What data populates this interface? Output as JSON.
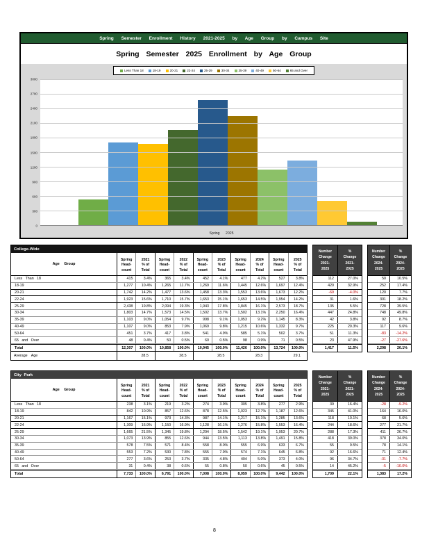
{
  "banner": {
    "title": "Spring Semester Enrollment History 2021-2025 by Age Group by Campus Site"
  },
  "chart": {
    "title": "Spring Semester 2025 Enrollment by Age Group",
    "x_axis_label": "Spring 2025"
  },
  "chart_data": {
    "type": "bar",
    "title": "Spring Semester 2025 Enrollment by Age Group",
    "categories": [
      "Less Than 18",
      "18-19",
      "20-21",
      "22-24",
      "25-29",
      "30-34",
      "35-39",
      "40-49",
      "50-64",
      "65 and Over"
    ],
    "values": [
      527,
      1697,
      1673,
      1954,
      2573,
      2250,
      1145,
      1332,
      502,
      71
    ],
    "colors": [
      "#70AD47",
      "#5B9BD5",
      "#FFC000",
      "#44682D",
      "#27598C",
      "#9C7500",
      "#8CC168",
      "#7CADDE",
      "#FFC933",
      "#538135"
    ],
    "xlabel": "Spring 2025",
    "ylabel": "",
    "ylim": [
      0,
      3000
    ],
    "ytick_step": 300,
    "grid": true,
    "legend_position": "top"
  },
  "table_headers": {
    "age_group": "Age Group",
    "count_lines": [
      "Spring",
      "Head-",
      "count"
    ],
    "pct_lines": [
      "% of",
      "Total"
    ],
    "years": [
      "2021",
      "2022",
      "2023",
      "2024",
      "2025"
    ]
  },
  "change_headers": {
    "a": {
      "col1": [
        "Number",
        "Change",
        "2021-",
        "2025"
      ],
      "col2": [
        "%",
        "Change",
        "2021-",
        "2025"
      ]
    },
    "b": {
      "col1": [
        "Number",
        "Change",
        "2024-",
        "2025"
      ],
      "col2": [
        "%",
        "Change",
        "2024-",
        "2025"
      ]
    }
  },
  "tables": [
    {
      "id": "college-wide",
      "title": "College-Wide",
      "title_bg": "#141414",
      "rows": [
        {
          "label": "Less Than 18",
          "cells": [
            "415",
            "3.4%",
            "365",
            "3.4%",
            "452",
            "4.1%",
            "477",
            "4.2%",
            "527",
            "3.8%"
          ]
        },
        {
          "label": "18-19",
          "cells": [
            "1,277",
            "10.4%",
            "1,265",
            "11.7%",
            "1,269",
            "11.6%",
            "1,445",
            "12.6%",
            "1,697",
            "12.4%"
          ]
        },
        {
          "label": "20-21",
          "cells": [
            "1,742",
            "14.2%",
            "1,477",
            "13.6%",
            "1,458",
            "13.3%",
            "1,553",
            "13.6%",
            "1,673",
            "12.2%"
          ]
        },
        {
          "label": "22-24",
          "cells": [
            "1,923",
            "15.6%",
            "1,710",
            "15.7%",
            "1,653",
            "15.1%",
            "1,653",
            "14.5%",
            "1,954",
            "14.2%"
          ]
        },
        {
          "label": "25-29",
          "cells": [
            "2,438",
            "19.8%",
            "2,094",
            "19.3%",
            "1,943",
            "17.8%",
            "1,845",
            "16.1%",
            "2,573",
            "18.7%"
          ]
        },
        {
          "label": "30-34",
          "cells": [
            "1,803",
            "14.7%",
            "1,573",
            "14.5%",
            "1,502",
            "13.7%",
            "1,502",
            "13.1%",
            "2,250",
            "16.4%"
          ]
        },
        {
          "label": "35-39",
          "cells": [
            "1,103",
            "9.0%",
            "1,054",
            "9.7%",
            "998",
            "9.1%",
            "1,053",
            "9.2%",
            "1,145",
            "8.3%"
          ]
        },
        {
          "label": "40-49",
          "cells": [
            "1,107",
            "9.0%",
            "853",
            "7.9%",
            "1,069",
            "9.8%",
            "1,215",
            "10.6%",
            "1,332",
            "9.7%"
          ]
        },
        {
          "label": "50-64",
          "cells": [
            "451",
            "3.7%",
            "417",
            "3.8%",
            "541",
            "4.9%",
            "585",
            "5.1%",
            "502",
            "3.7%"
          ]
        },
        {
          "label": "65 and Over",
          "cells": [
            "48",
            "0.4%",
            "50",
            "0.5%",
            "60",
            "0.5%",
            "98",
            "0.9%",
            "71",
            "0.5%"
          ]
        }
      ],
      "total_row": {
        "label": "Total",
        "cells": [
          "12,307",
          "100.0%",
          "10,858",
          "100.0%",
          "10,945",
          "100.0%",
          "11,426",
          "100.0%",
          "13,724",
          "100.0%"
        ]
      },
      "change_a": {
        "rows": [
          [
            "112",
            "27.0%"
          ],
          [
            "420",
            "32.9%"
          ],
          [
            "-69",
            "-4.0%"
          ],
          [
            "31",
            "1.6%"
          ],
          [
            "135",
            "5.5%"
          ],
          [
            "447",
            "24.8%"
          ],
          [
            "42",
            "3.8%"
          ],
          [
            "225",
            "20.3%"
          ],
          [
            "51",
            "11.3%"
          ],
          [
            "23",
            "47.9%"
          ]
        ],
        "total": [
          "1,417",
          "11.5%"
        ]
      },
      "change_b": {
        "rows": [
          [
            "50",
            "10.5%"
          ],
          [
            "252",
            "17.4%"
          ],
          [
            "120",
            "7.7%"
          ],
          [
            "301",
            "18.2%"
          ],
          [
            "728",
            "39.5%"
          ],
          [
            "748",
            "49.8%"
          ],
          [
            "92",
            "8.7%"
          ],
          [
            "117",
            "9.6%"
          ],
          [
            "-83",
            "-14.2%"
          ],
          [
            "-27",
            "-27.6%"
          ]
        ],
        "total": [
          "2,298",
          "20.1%"
        ]
      }
    },
    {
      "id": "city-park",
      "title": "City Park",
      "title_bg": "#3F3F3F",
      "rows": [
        {
          "label": "Less Than 18",
          "cells": [
            "238",
            "3.1%",
            "219",
            "3.2%",
            "274",
            "3.9%",
            "305",
            "3.8%",
            "277",
            "2.9%"
          ]
        },
        {
          "label": "18-19",
          "cells": [
            "842",
            "10.9%",
            "857",
            "12.6%",
            "878",
            "12.5%",
            "1,023",
            "12.7%",
            "1,187",
            "12.6%"
          ]
        },
        {
          "label": "20-21",
          "cells": [
            "1,167",
            "15.1%",
            "973",
            "14.3%",
            "987",
            "14.1%",
            "1,217",
            "15.1%",
            "1,285",
            "13.6%"
          ]
        },
        {
          "label": "22-24",
          "cells": [
            "1,309",
            "16.9%",
            "1,150",
            "16.9%",
            "1,128",
            "16.1%",
            "1,276",
            "15.8%",
            "1,553",
            "16.4%"
          ]
        },
        {
          "label": "25-29",
          "cells": [
            "1,665",
            "21.5%",
            "1,345",
            "19.8%",
            "1,294",
            "18.5%",
            "1,542",
            "19.1%",
            "1,953",
            "20.7%"
          ]
        },
        {
          "label": "30-34",
          "cells": [
            "1,073",
            "13.9%",
            "855",
            "12.6%",
            "944",
            "13.5%",
            "1,113",
            "13.8%",
            "1,491",
            "15.8%"
          ]
        },
        {
          "label": "35-39",
          "cells": [
            "578",
            "7.5%",
            "571",
            "8.4%",
            "558",
            "8.0%",
            "555",
            "6.9%",
            "633",
            "6.7%"
          ]
        },
        {
          "label": "40-49",
          "cells": [
            "553",
            "7.2%",
            "530",
            "7.8%",
            "555",
            "7.9%",
            "574",
            "7.1%",
            "645",
            "6.8%"
          ]
        },
        {
          "label": "50-64",
          "cells": [
            "277",
            "3.6%",
            "253",
            "3.7%",
            "335",
            "4.8%",
            "404",
            "5.0%",
            "373",
            "4.0%"
          ]
        },
        {
          "label": "65 and Over",
          "cells": [
            "31",
            "0.4%",
            "38",
            "0.6%",
            "55",
            "0.8%",
            "50",
            "0.6%",
            "45",
            "0.5%"
          ]
        }
      ],
      "total_row": {
        "label": "Total",
        "cells": [
          "7,733",
          "100.0%",
          "6,791",
          "100.0%",
          "7,008",
          "100.0%",
          "8,059",
          "100.0%",
          "9,442",
          "100.0%"
        ]
      },
      "change_a": {
        "rows": [
          [
            "39",
            "16.4%"
          ],
          [
            "345",
            "41.0%"
          ],
          [
            "118",
            "10.1%"
          ],
          [
            "244",
            "18.6%"
          ],
          [
            "288",
            "17.3%"
          ],
          [
            "418",
            "39.0%"
          ],
          [
            "55",
            "9.5%"
          ],
          [
            "92",
            "16.6%"
          ],
          [
            "96",
            "34.7%"
          ],
          [
            "14",
            "45.2%"
          ]
        ],
        "total": [
          "1,709",
          "22.1%"
        ]
      },
      "change_b": {
        "rows": [
          [
            "-28",
            "-9.2%"
          ],
          [
            "164",
            "16.0%"
          ],
          [
            "68",
            "5.6%"
          ],
          [
            "277",
            "21.7%"
          ],
          [
            "411",
            "26.7%"
          ],
          [
            "378",
            "34.0%"
          ],
          [
            "78",
            "14.1%"
          ],
          [
            "71",
            "12.4%"
          ],
          [
            "-31",
            "-7.7%"
          ],
          [
            "-5",
            "-10.0%"
          ]
        ],
        "total": [
          "1,383",
          "17.2%"
        ]
      }
    }
  ],
  "average_age": {
    "label": "Average Age",
    "values": [
      "28.5",
      "28.5",
      "28.5",
      "28.3",
      "29.1"
    ]
  },
  "page": {
    "number": "8"
  },
  "colors": {
    "banner_green": "#215C30",
    "chart_background": "#D9D9D9",
    "change_header_bg": "#404040",
    "negative_red": "#C00000"
  }
}
